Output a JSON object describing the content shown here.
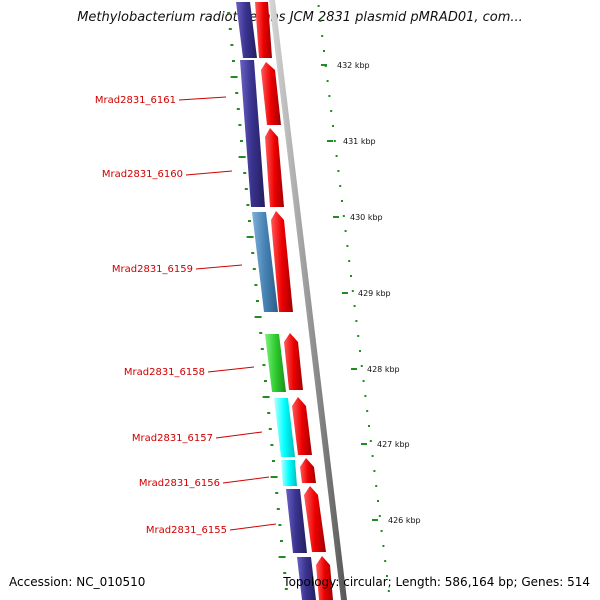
{
  "title": "Methylobacterium radiotolerans JCM 2831 plasmid pMRAD01, com...",
  "accession_text": "Accession: NC_010510",
  "topology_text": "Topology: circular; Length: 586,164 bp; Genes: 514",
  "ticks": [
    "432 kbp",
    "431 kbp",
    "430 kbp",
    "429 kbp",
    "428 kbp",
    "427 kbp",
    "426 kbp"
  ],
  "gene_labels": [
    "Mrad2831_6161",
    "Mrad2831_6160",
    "Mrad2831_6159",
    "Mrad2831_6158",
    "Mrad2831_6157",
    "Mrad2831_6156",
    "Mrad2831_6155"
  ],
  "colors": {
    "label": "#d00000",
    "forward_arrow": "#ee0000",
    "cog_blue_purple": "#3b3490",
    "cog_steel_blue": "#4682b4",
    "cog_green": "#2ecc2e",
    "cog_cyan": "#00ffff",
    "backbone": "#9a9a9a",
    "tick": "#228b22"
  }
}
